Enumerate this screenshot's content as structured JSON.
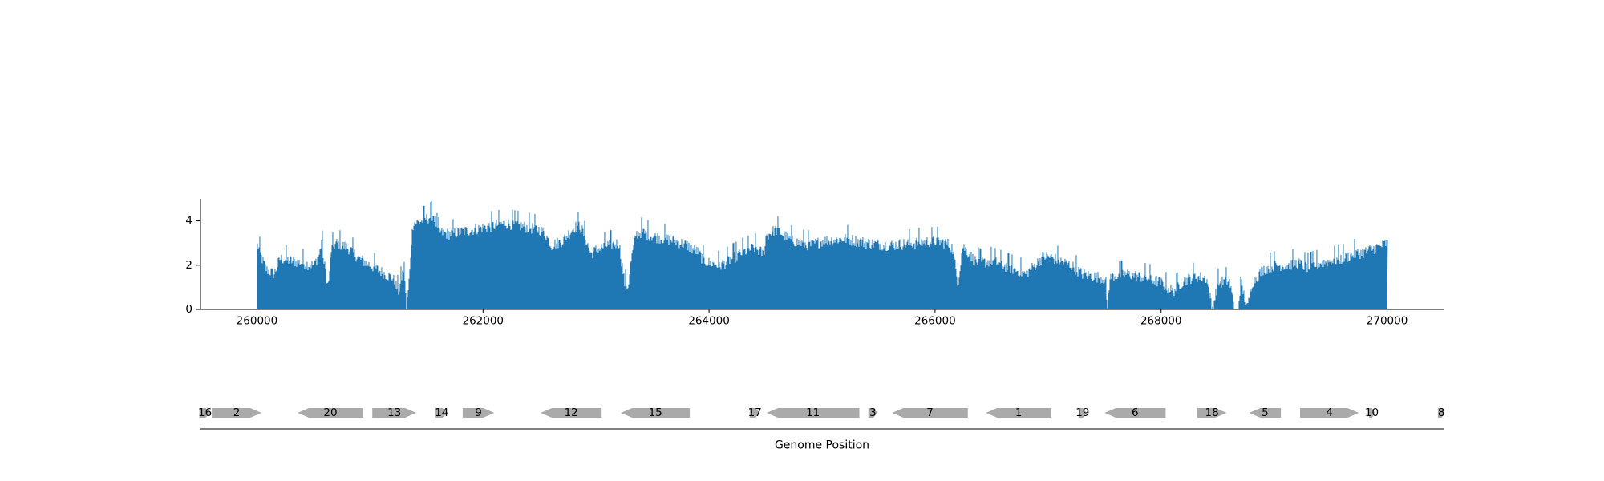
{
  "chart_data": [
    {
      "type": "bar",
      "title": "",
      "xlabel": "",
      "ylabel": "",
      "xlim": [
        259500,
        270500
      ],
      "ylim": [
        0,
        5
      ],
      "yticks": [
        0,
        2,
        4
      ],
      "xticks": [
        260000,
        262000,
        264000,
        266000,
        268000,
        270000
      ],
      "xtick_labels": [
        "260000",
        "262000",
        "264000",
        "266000",
        "268000",
        "270000"
      ],
      "ytick_labels": [
        "0",
        "2",
        "4"
      ],
      "bar_color": "#1f77b4",
      "data_range": [
        260000,
        270000
      ],
      "profile_x": [
        260000,
        260010,
        260040,
        260080,
        260150,
        260200,
        260300,
        260400,
        260500,
        260550,
        260570,
        260590,
        260600,
        260620,
        260640,
        260650,
        260700,
        260800,
        260900,
        261000,
        261100,
        261200,
        261250,
        261300,
        261320,
        261350,
        261360,
        261380,
        261400,
        261450,
        261500,
        261560,
        261600,
        261700,
        261800,
        261900,
        262000,
        262100,
        262200,
        262300,
        262400,
        262500,
        262550,
        262600,
        262700,
        262800,
        262850,
        262900,
        262950,
        263000,
        263100,
        263200,
        263250,
        263280,
        263300,
        263350,
        263400,
        263500,
        263600,
        263700,
        263800,
        263900,
        263950,
        264000,
        264100,
        264200,
        264300,
        264400,
        264480,
        264500,
        264550,
        264600,
        264700,
        264800,
        264900,
        265000,
        265200,
        265400,
        265600,
        265800,
        266000,
        266100,
        266150,
        266190,
        266200,
        266240,
        266300,
        266350,
        266400,
        266500,
        266600,
        266700,
        266800,
        266900,
        266950,
        267000,
        267100,
        267200,
        267300,
        267400,
        267500,
        267520,
        267540,
        267560,
        267700,
        267900,
        268000,
        268100,
        268150,
        268200,
        268300,
        268400,
        268450,
        268500,
        268600,
        268650,
        268680,
        268700,
        268760,
        268800,
        268850,
        268900,
        269000,
        269100,
        269200,
        269300,
        269400,
        269500,
        269600,
        269700,
        269800,
        269900,
        270000
      ],
      "profile_y": [
        2.9,
        2.8,
        2.3,
        1.8,
        1.6,
        2.3,
        2.2,
        2.1,
        2.0,
        2.5,
        3.2,
        2.0,
        1.9,
        1.0,
        1.6,
        2.7,
        3.0,
        2.8,
        2.3,
        2.0,
        1.7,
        1.4,
        0.8,
        2.0,
        0.0,
        1.8,
        3.0,
        4.0,
        3.9,
        4.0,
        4.1,
        4.3,
        3.5,
        3.4,
        3.5,
        3.6,
        3.7,
        3.8,
        3.9,
        3.8,
        3.7,
        3.6,
        3.4,
        2.9,
        3.1,
        3.7,
        3.8,
        3.3,
        2.5,
        2.7,
        2.9,
        3.0,
        1.2,
        1.0,
        2.0,
        3.4,
        3.5,
        3.3,
        3.2,
        3.1,
        2.9,
        2.6,
        2.2,
        2.1,
        2.0,
        2.3,
        2.6,
        2.8,
        2.5,
        3.3,
        3.5,
        3.6,
        3.2,
        3.0,
        2.9,
        3.1,
        3.2,
        3.0,
        2.9,
        3.0,
        3.1,
        3.0,
        2.8,
        1.5,
        1.2,
        2.9,
        2.5,
        2.2,
        2.1,
        2.2,
        2.0,
        1.8,
        1.6,
        2.1,
        2.4,
        2.4,
        2.2,
        2.0,
        1.6,
        1.5,
        1.4,
        0.0,
        1.3,
        1.5,
        1.6,
        1.4,
        1.2,
        0.8,
        1.1,
        1.3,
        1.5,
        1.4,
        0.0,
        1.2,
        1.3,
        0.0,
        0.0,
        1.3,
        0.0,
        1.2,
        1.5,
        1.8,
        2.0,
        2.0,
        2.1,
        1.9,
        2.1,
        2.2,
        2.3,
        2.5,
        2.6,
        2.8,
        3.0
      ]
    },
    {
      "type": "gene-track",
      "xlabel": "Genome Position",
      "genes": [
        {
          "id": "16",
          "start": 259490,
          "end": 259590,
          "strand": "+"
        },
        {
          "id": "2",
          "start": 259600,
          "end": 260040,
          "strand": "+"
        },
        {
          "id": "20",
          "start": 260360,
          "end": 260940,
          "strand": "-"
        },
        {
          "id": "13",
          "start": 261020,
          "end": 261410,
          "strand": "+"
        },
        {
          "id": "14",
          "start": 261580,
          "end": 261690,
          "strand": "+"
        },
        {
          "id": "9",
          "start": 261820,
          "end": 262100,
          "strand": "+"
        },
        {
          "id": "12",
          "start": 262510,
          "end": 263050,
          "strand": "-"
        },
        {
          "id": "15",
          "start": 263220,
          "end": 263830,
          "strand": "-"
        },
        {
          "id": "17",
          "start": 264360,
          "end": 264450,
          "strand": "+"
        },
        {
          "id": "11",
          "start": 264510,
          "end": 265330,
          "strand": "-"
        },
        {
          "id": "3",
          "start": 265410,
          "end": 265490,
          "strand": "+"
        },
        {
          "id": "7",
          "start": 265620,
          "end": 266290,
          "strand": "-"
        },
        {
          "id": "1",
          "start": 266450,
          "end": 267030,
          "strand": "-"
        },
        {
          "id": "19",
          "start": 267270,
          "end": 267340,
          "strand": "+"
        },
        {
          "id": "6",
          "start": 267500,
          "end": 268040,
          "strand": "-"
        },
        {
          "id": "18",
          "start": 268320,
          "end": 268580,
          "strand": "+"
        },
        {
          "id": "5",
          "start": 268780,
          "end": 269060,
          "strand": "-"
        },
        {
          "id": "4",
          "start": 269230,
          "end": 269750,
          "strand": "+"
        },
        {
          "id": "10",
          "start": 269840,
          "end": 269890,
          "strand": "+"
        },
        {
          "id": "8",
          "start": 270450,
          "end": 270510,
          "strand": "+"
        }
      ],
      "gene_color": "#aaaaaa"
    }
  ]
}
